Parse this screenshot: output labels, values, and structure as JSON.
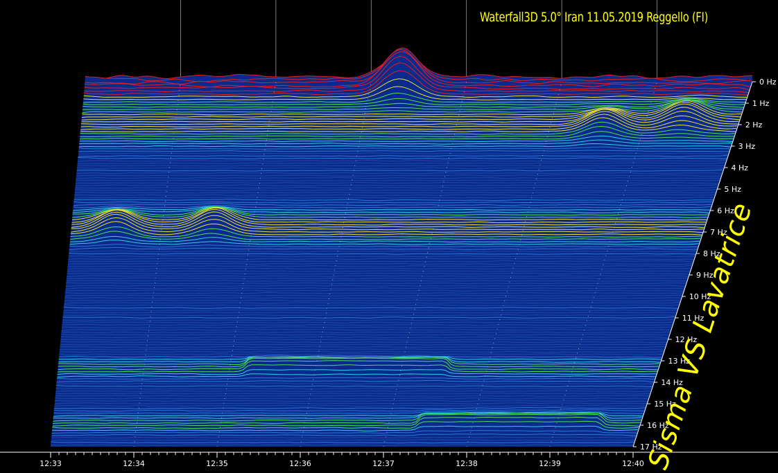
{
  "title": "Waterfall3D 5.0° Iran 11.05.2019 Reggello (FI)",
  "side_label": "Sisma VS Lavatrice",
  "colors": {
    "background": "#000000",
    "text": "#ffffff",
    "title": "#ffff00",
    "floor": "#0a2a8c"
  },
  "chart_data": {
    "type": "waterfall",
    "title": "Waterfall3D 5.0° Iran 11.05.2019 Reggello (FI)",
    "xlabel": "",
    "ylabel": "",
    "x_ticks": [
      "12:33",
      "12:34",
      "12:35",
      "12:36",
      "12:37",
      "12:38",
      "12:39",
      "12:40"
    ],
    "y_ticks": [
      "0 Hz",
      "1 Hz",
      "2 Hz",
      "3 Hz",
      "4 Hz",
      "5 Hz",
      "6 Hz",
      "7 Hz",
      "8 Hz",
      "9 Hz",
      "10 Hz",
      "11 Hz",
      "12 Hz",
      "13 Hz",
      "14 Hz",
      "15 Hz",
      "16 Hz",
      "17 Hz"
    ],
    "x_range": [
      "12:33",
      "12:40"
    ],
    "freq_range_hz": [
      0,
      17
    ],
    "features": [
      {
        "time": "12:36:20",
        "freq_hz": 0.3,
        "intensity": "high"
      },
      {
        "time": "12:39:25",
        "freq_hz": 1.8,
        "intensity": "medium"
      },
      {
        "time": "12:38:35",
        "freq_hz": 2.2,
        "intensity": "medium"
      },
      {
        "time": "12:34:35",
        "freq_hz": 6.8,
        "intensity": "medium"
      },
      {
        "time": "12:33:30",
        "freq_hz": 6.9,
        "intensity": "medium"
      },
      {
        "time_start": "12:35:15",
        "time_end": "12:37:30",
        "freq_hz": 13.4,
        "intensity": "medium"
      },
      {
        "time_start": "12:37:25",
        "time_end": "12:39:30",
        "freq_hz": 16.0,
        "intensity": "medium"
      }
    ]
  }
}
